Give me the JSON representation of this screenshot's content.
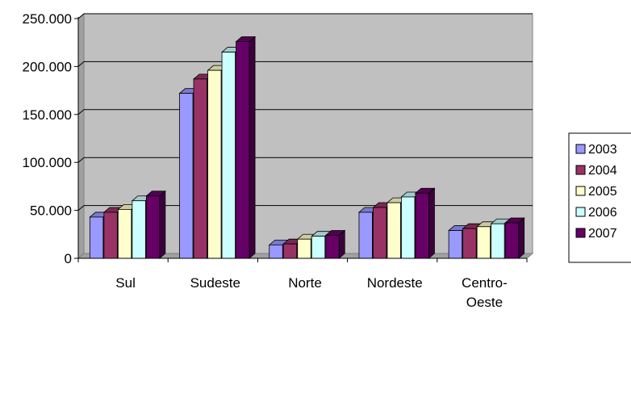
{
  "chart_data": {
    "type": "bar",
    "title": "",
    "xlabel": "",
    "ylabel": "",
    "ylim": [
      0,
      250000
    ],
    "y_ticks": [
      "0",
      "50.000",
      "100.000",
      "150.000",
      "200.000",
      "250.000"
    ],
    "y_tick_values": [
      0,
      50000,
      100000,
      150000,
      200000,
      250000
    ],
    "categories": [
      "Sul",
      "Sudeste",
      "Norte",
      "Nordeste",
      "Centro-Oeste"
    ],
    "category_label_lines": [
      [
        "Sul"
      ],
      [
        "Sudeste"
      ],
      [
        "Norte"
      ],
      [
        "Nordeste"
      ],
      [
        "Centro-",
        "Oeste"
      ]
    ],
    "grid": true,
    "legend_position": "right",
    "plot_background": "#c0c0c0",
    "series": [
      {
        "name": "2003",
        "color": "#9999ff",
        "values": [
          43000,
          172000,
          14000,
          48000,
          29000
        ]
      },
      {
        "name": "2004",
        "color": "#993366",
        "values": [
          48000,
          187000,
          15000,
          53000,
          31000
        ]
      },
      {
        "name": "2005",
        "color": "#ffffcc",
        "values": [
          51000,
          196000,
          20000,
          58000,
          33000
        ]
      },
      {
        "name": "2006",
        "color": "#ccffff",
        "values": [
          60000,
          215000,
          23000,
          64000,
          36000
        ]
      },
      {
        "name": "2007",
        "color": "#660066",
        "values": [
          65000,
          226000,
          24000,
          68000,
          37000
        ]
      }
    ]
  }
}
